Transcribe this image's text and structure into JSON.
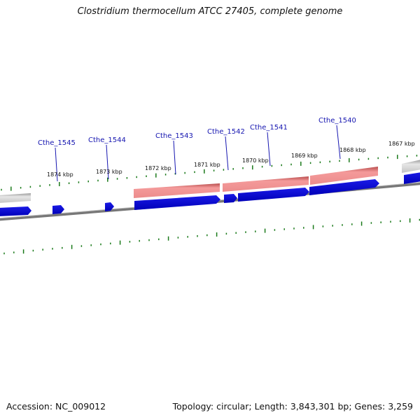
{
  "title": "Clostridium thermocellum ATCC 27405, complete genome",
  "footer": {
    "accession": "Accession: NC_009012",
    "summary": "Topology: circular; Length: 3,843,301 bp; Genes: 3,259"
  },
  "colors": {
    "cds": "#0a0adc",
    "gene": "#e86a6a",
    "tick": "#1a7a1a",
    "backbone": "#7a7a7a",
    "label": "#1515b0"
  },
  "position_labels": [
    "1874 kbp",
    "1873 kbp",
    "1872 kbp",
    "1871 kbp",
    "1870 kbp",
    "1869 kbp",
    "1868 kbp",
    "1867 kbp"
  ],
  "gene_labels": [
    "Cthe_1545",
    "Cthe_1544",
    "Cthe_1543",
    "Cthe_1542",
    "Cthe_1541",
    "Cthe_1540"
  ]
}
